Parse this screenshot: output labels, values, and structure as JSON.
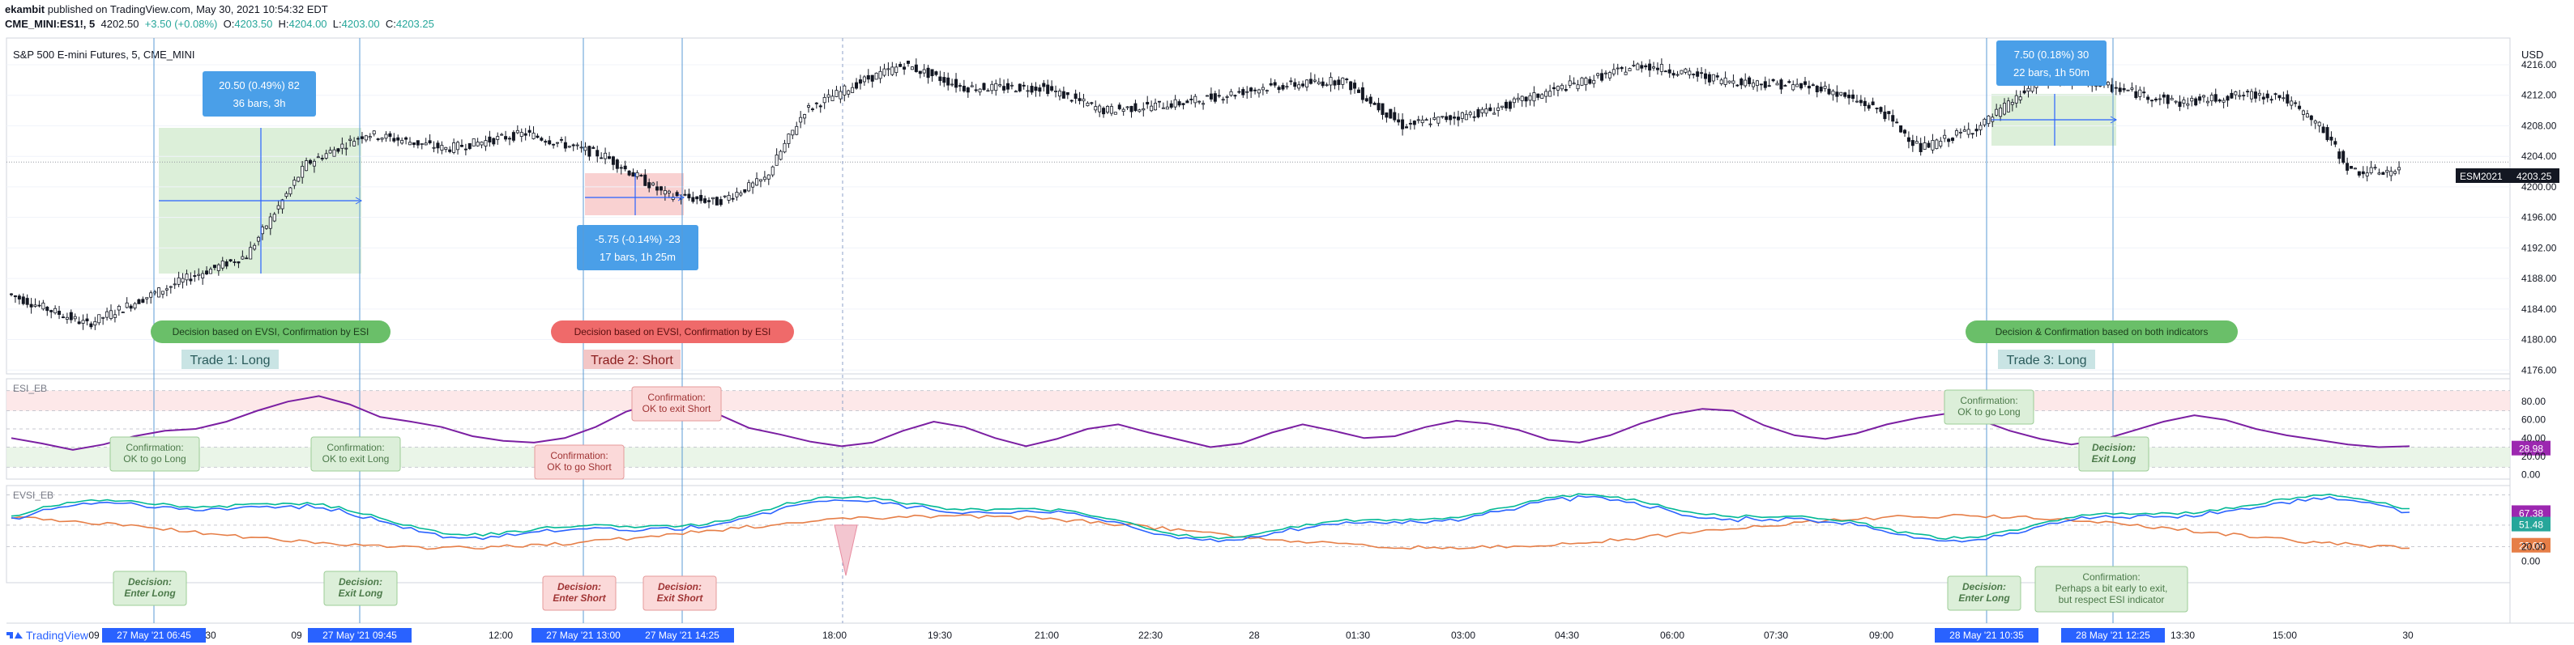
{
  "header": {
    "author": "ekambit",
    "published": "published on TradingView.com, May 30, 2021 10:54:32 EDT",
    "symbol": "CME_MINI:ES1!, 5",
    "last": "4202.50",
    "change": "+3.50 (+0.08%)",
    "o_label": "O:",
    "o": "4203.50",
    "h_label": "H:",
    "h": "4204.00",
    "l_label": "L:",
    "l": "4203.00",
    "c_label": "C:",
    "c": "4203.25"
  },
  "chart_title": "S&P 500 E-mini Futures, 5, CME_MINI",
  "currency": "USD",
  "price_tag": {
    "symbol": "ESM2021",
    "value": "4203.25"
  },
  "footer_logo": "TradingView",
  "colors": {
    "up": "#ffffff",
    "down": "#131722",
    "vline": "#5b9bd5",
    "long_fill": "#d6ecd2",
    "short_fill": "#f8c9c9",
    "info_blue": "#4a9fe8",
    "esi": "#7b1fa2",
    "evsi_green": "#00b894",
    "evsi_blue": "#2962ff",
    "evsi_orange": "#e67e47"
  },
  "chart_data": {
    "type": "candlestick",
    "price_axis": {
      "ticks": [
        "4216.00",
        "4212.00",
        "4208.00",
        "4204.00",
        "4200.00",
        "4196.00",
        "4192.00",
        "4188.00",
        "4184.00",
        "4180.00",
        "4176.00"
      ],
      "range": [
        4175.5,
        4219.5
      ]
    },
    "time_axis": {
      "labels": [
        "09",
        "30",
        "09",
        "30",
        "12:00",
        "13:00",
        "18:00",
        "19:30",
        "21:00",
        "22:30",
        "28",
        "01:30",
        "03:00",
        "04:30",
        "06:00",
        "07:30",
        "09:00",
        "10:30",
        "12:30",
        "13:30",
        "15:00",
        "30"
      ],
      "highlights": [
        {
          "label": "27 May '21   06:45"
        },
        {
          "label": "27 May '21   09:45"
        },
        {
          "label": "27 May '21   13:00"
        },
        {
          "label": "27 May '21   14:25"
        },
        {
          "label": "28 May '21   10:35"
        },
        {
          "label": "28 May '21   12:25"
        }
      ]
    },
    "price_series_anchors": [
      [
        0,
        4186
      ],
      [
        20,
        4182
      ],
      [
        45,
        4188
      ],
      [
        60,
        4191
      ],
      [
        75,
        4203
      ],
      [
        90,
        4207
      ],
      [
        110,
        4205
      ],
      [
        130,
        4207
      ],
      [
        150,
        4204
      ],
      [
        165,
        4199
      ],
      [
        178,
        4198
      ],
      [
        190,
        4201
      ],
      [
        200,
        4210
      ],
      [
        215,
        4214
      ],
      [
        225,
        4216
      ],
      [
        240,
        4213
      ],
      [
        260,
        4213
      ],
      [
        275,
        4210
      ],
      [
        295,
        4211
      ],
      [
        315,
        4213
      ],
      [
        335,
        4214
      ],
      [
        350,
        4208
      ],
      [
        372,
        4210
      ],
      [
        390,
        4213
      ],
      [
        410,
        4216
      ],
      [
        430,
        4214
      ],
      [
        455,
        4213
      ],
      [
        470,
        4210
      ],
      [
        480,
        4205
      ],
      [
        495,
        4208
      ],
      [
        510,
        4214
      ],
      [
        520,
        4214
      ],
      [
        528,
        4213
      ],
      [
        545,
        4211
      ],
      [
        560,
        4212
      ],
      [
        570,
        4212
      ],
      [
        580,
        4208
      ],
      [
        588,
        4202
      ],
      [
        600,
        4202
      ]
    ],
    "ranges": [
      {
        "label_value": "20.50 (0.49%) 82",
        "label_bars": "36 bars, 3h"
      },
      {
        "label_value": "-5.75 (-0.14%) -23",
        "label_bars": "17 bars, 1h 25m"
      },
      {
        "label_value": "7.50 (0.18%) 30",
        "label_bars": "22 bars, 1h 50m"
      }
    ],
    "trades": [
      {
        "banner": "Decision based on EVSI, Confirmation by ESI",
        "label": "Trade 1: Long",
        "kind": "long"
      },
      {
        "banner": "Decision based on EVSI, Confirmation by ESI",
        "label": "Trade 2: Short",
        "kind": "short"
      },
      {
        "banner": "Decision & Confirmation based on both indicators",
        "label": "Trade 3: Long",
        "kind": "long"
      }
    ],
    "esi": {
      "name": "ESI_EB",
      "axis_ticks": [
        "80.00",
        "60.00",
        "40.00",
        "20.00",
        "0.00"
      ],
      "range": [
        -5,
        105
      ],
      "last": "28.98",
      "values": [
        40,
        34,
        27,
        33,
        42,
        48,
        50,
        58,
        70,
        80,
        86,
        77,
        63,
        58,
        52,
        42,
        37,
        35,
        40,
        52,
        69,
        79,
        82,
        66,
        51,
        44,
        36,
        31,
        35,
        48,
        58,
        52,
        40,
        31,
        39,
        50,
        55,
        46,
        38,
        30,
        34,
        46,
        55,
        48,
        40,
        42,
        52,
        59,
        56,
        49,
        38,
        35,
        43,
        56,
        66,
        72,
        70,
        54,
        43,
        39,
        45,
        55,
        62,
        67,
        60,
        48,
        39,
        33,
        38,
        48,
        58,
        65,
        60,
        50,
        43,
        38,
        33,
        30,
        31
      ],
      "annotations": [
        {
          "line1": "Confirmation:",
          "line2": "OK to go Long",
          "kind": "long"
        },
        {
          "line1": "Confirmation:",
          "line2": "OK to exit Long",
          "kind": "long"
        },
        {
          "line1": "Confirmation:",
          "line2": "OK to go Short",
          "kind": "short"
        },
        {
          "line1": "Confirmation:",
          "line2": "OK to exit Short",
          "kind": "short"
        },
        {
          "line1": "Confirmation:",
          "line2": "OK to go Long",
          "kind": "long"
        },
        {
          "line1": "Decision:",
          "line2": "Exit Long",
          "kind": "long"
        }
      ]
    },
    "evsi": {
      "name": "EVSI_EB",
      "axis_ticks": [
        "20.00",
        "0.00"
      ],
      "range": [
        -30,
        105
      ],
      "last_values": [
        "67.38",
        "51.48",
        "22.06"
      ],
      "annotations": [
        {
          "line1": "Decision:",
          "line2": "Enter Long",
          "kind": "long"
        },
        {
          "line1": "Decision:",
          "line2": "Exit Long",
          "kind": "long"
        },
        {
          "line1": "Decision:",
          "line2": "Enter Short",
          "kind": "short"
        },
        {
          "line1": "Decision:",
          "line2": "Exit Short",
          "kind": "short"
        },
        {
          "line1": "Decision:",
          "line2": "Enter Long",
          "kind": "long"
        },
        {
          "line1": "Confirmation:",
          "line2": "Perhaps a bit early to exit,",
          "line3": "but respect ESI indicator",
          "kind": "long"
        }
      ]
    }
  }
}
